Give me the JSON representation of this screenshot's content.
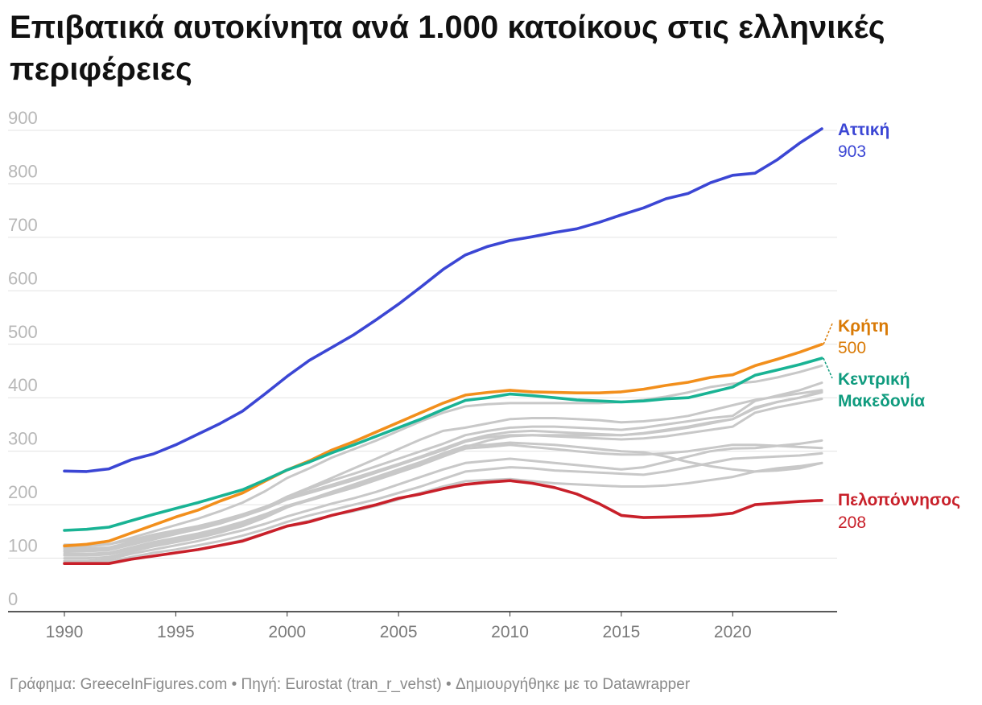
{
  "title": "Επιβατικά αυτοκίνητα ανά 1.000 κατοίκους στις ελληνικές περιφέρειες",
  "footer": "Γράφημα: GreeceInFigures.com • Πηγή: Eurostat (tran_r_vehst) • Δημιουργήθηκε με το Datawrapper",
  "chart_data": {
    "type": "line",
    "title": "Επιβατικά αυτοκίνητα ανά 1.000 κατοίκους στις ελληνικές περιφέρειες",
    "xlabel": "",
    "ylabel": "",
    "xlim": [
      1990,
      2024
    ],
    "ylim": [
      0,
      900
    ],
    "y_ticks": [
      "0",
      "100",
      "200",
      "300",
      "400",
      "500",
      "600",
      "700",
      "800",
      "900"
    ],
    "x_ticks": [
      "1990",
      "1995",
      "2000",
      "2005",
      "2010",
      "2015",
      "2020"
    ],
    "grid": true,
    "x": [
      1990,
      1991,
      1992,
      1993,
      1994,
      1995,
      1996,
      1997,
      1998,
      1999,
      2000,
      2001,
      2002,
      2003,
      2004,
      2005,
      2006,
      2007,
      2008,
      2009,
      2010,
      2011,
      2012,
      2013,
      2014,
      2015,
      2016,
      2017,
      2018,
      2019,
      2020,
      2021,
      2022,
      2023,
      2024
    ],
    "colors": {
      "highlight_attiki": "#3b46d4",
      "highlight_kriti": "#f28f1c",
      "highlight_kentriki": "#19b394",
      "highlight_pelop": "#c8202a",
      "background": "#c8c8c8",
      "label_kriti": "#d97a06",
      "label_kentriki": "#0f9b7e"
    },
    "series": [
      {
        "name": "",
        "role": "background",
        "values": [
          125,
          125,
          126,
          134,
          144,
          152,
          160,
          170,
          182,
          196,
          212,
          225,
          237,
          250,
          263,
          276,
          290,
          305,
          320,
          330,
          336,
          338,
          336,
          334,
          332,
          330,
          333,
          338,
          344,
          352,
          360,
          380,
          392,
          400,
          410
        ]
      },
      {
        "name": "",
        "role": "background",
        "values": [
          118,
          118,
          120,
          130,
          140,
          148,
          156,
          166,
          178,
          192,
          210,
          222,
          234,
          246,
          260,
          274,
          288,
          302,
          318,
          326,
          330,
          330,
          328,
          326,
          324,
          322,
          324,
          328,
          334,
          340,
          346,
          372,
          382,
          390,
          398
        ]
      },
      {
        "name": "",
        "role": "background",
        "values": [
          108,
          108,
          110,
          120,
          130,
          138,
          146,
          156,
          168,
          182,
          198,
          210,
          222,
          236,
          250,
          264,
          278,
          292,
          308,
          320,
          328,
          330,
          330,
          330,
          330,
          330,
          334,
          340,
          346,
          354,
          360,
          382,
          392,
          400,
          412
        ]
      },
      {
        "name": "",
        "role": "background",
        "values": [
          115,
          116,
          118,
          128,
          138,
          146,
          154,
          165,
          178,
          194,
          215,
          230,
          245,
          258,
          272,
          286,
          300,
          314,
          330,
          338,
          344,
          346,
          346,
          344,
          342,
          340,
          344,
          350,
          356,
          362,
          366,
          394,
          404,
          414,
          428
        ]
      },
      {
        "name": "",
        "role": "background",
        "values": [
          120,
          122,
          126,
          138,
          150,
          162,
          174,
          188,
          204,
          225,
          250,
          268,
          288,
          304,
          320,
          338,
          356,
          372,
          384,
          388,
          390,
          390,
          390,
          390,
          390,
          392,
          396,
          402,
          410,
          420,
          426,
          430,
          438,
          448,
          460
        ]
      },
      {
        "name": "",
        "role": "background",
        "values": [
          112,
          113,
          115,
          125,
          135,
          145,
          155,
          166,
          178,
          194,
          215,
          232,
          250,
          268,
          286,
          304,
          322,
          338,
          344,
          352,
          360,
          362,
          362,
          360,
          358,
          354,
          356,
          360,
          366,
          376,
          386,
          396,
          402,
          408,
          414
        ]
      },
      {
        "name": "",
        "role": "background",
        "values": [
          100,
          100,
          102,
          112,
          122,
          130,
          138,
          148,
          160,
          176,
          195,
          210,
          224,
          238,
          252,
          266,
          280,
          296,
          310,
          312,
          316,
          314,
          312,
          308,
          304,
          300,
          298,
          290,
          280,
          272,
          266,
          262,
          264,
          268,
          278
        ]
      },
      {
        "name": "",
        "role": "background",
        "values": [
          105,
          105,
          107,
          116,
          126,
          134,
          142,
          152,
          164,
          180,
          196,
          208,
          220,
          232,
          246,
          260,
          274,
          290,
          305,
          308,
          312,
          308,
          304,
          300,
          296,
          294,
          294,
          296,
          300,
          306,
          312,
          312,
          310,
          308,
          306
        ]
      },
      {
        "name": "",
        "role": "background",
        "values": [
          95,
          95,
          98,
          108,
          116,
          124,
          132,
          142,
          152,
          164,
          178,
          190,
          202,
          212,
          224,
          238,
          252,
          266,
          278,
          282,
          286,
          282,
          278,
          274,
          270,
          266,
          270,
          280,
          290,
          300,
          305,
          306,
          310,
          314,
          320
        ]
      },
      {
        "name": "",
        "role": "background",
        "values": [
          92,
          92,
          94,
          102,
          110,
          116,
          124,
          132,
          142,
          154,
          168,
          180,
          190,
          200,
          210,
          222,
          234,
          248,
          262,
          266,
          270,
          268,
          264,
          262,
          260,
          258,
          256,
          262,
          270,
          278,
          286,
          288,
          290,
          292,
          296
        ]
      },
      {
        "name": "",
        "role": "background",
        "values": [
          90,
          90,
          92,
          98,
          104,
          110,
          116,
          124,
          134,
          146,
          160,
          170,
          180,
          188,
          198,
          210,
          222,
          234,
          244,
          246,
          248,
          244,
          240,
          238,
          236,
          234,
          234,
          236,
          240,
          246,
          252,
          262,
          268,
          272,
          278
        ]
      },
      {
        "name": "Αττική",
        "role": "highlight",
        "color_key": "highlight_attiki",
        "values": [
          263,
          262,
          267,
          284,
          295,
          312,
          332,
          352,
          375,
          407,
          440,
          470,
          494,
          518,
          546,
          575,
          607,
          640,
          667,
          683,
          694,
          701,
          709,
          716,
          728,
          742,
          755,
          772,
          782,
          802,
          816,
          820,
          845,
          876,
          903
        ]
      },
      {
        "name": "Κρήτη",
        "role": "highlight",
        "color_key": "highlight_kriti",
        "values": [
          123,
          126,
          132,
          147,
          162,
          177,
          190,
          207,
          222,
          244,
          265,
          282,
          302,
          318,
          336,
          354,
          372,
          390,
          405,
          410,
          414,
          411,
          410,
          409,
          409,
          411,
          416,
          423,
          429,
          438,
          443,
          460,
          472,
          485,
          500
        ]
      },
      {
        "name": "Κεντρική Μακεδονία",
        "role": "highlight",
        "color_key": "highlight_kentriki",
        "values": [
          152,
          154,
          158,
          170,
          182,
          193,
          204,
          216,
          228,
          246,
          265,
          280,
          297,
          312,
          328,
          344,
          360,
          378,
          395,
          400,
          407,
          404,
          400,
          396,
          394,
          392,
          394,
          398,
          400,
          410,
          420,
          442,
          452,
          462,
          474
        ]
      },
      {
        "name": "Πελοπόννησος",
        "role": "highlight",
        "color_key": "highlight_pelop",
        "values": [
          90,
          90,
          90,
          98,
          104,
          110,
          116,
          124,
          132,
          146,
          160,
          168,
          180,
          190,
          200,
          212,
          220,
          230,
          238,
          242,
          245,
          240,
          232,
          220,
          202,
          180,
          176,
          177,
          178,
          180,
          184,
          200,
          203,
          206,
          208
        ]
      }
    ],
    "labels": [
      {
        "name": "Αττική",
        "value": "903",
        "color_key": "highlight_attiki"
      },
      {
        "name": "Κρήτη",
        "value": "500",
        "color_key": "label_kriti"
      },
      {
        "name_lines": [
          "Κεντρική",
          "Μακεδονία"
        ],
        "color_key": "label_kentriki"
      },
      {
        "name": "Πελοπόννησος",
        "value": "208",
        "color_key": "highlight_pelop"
      }
    ]
  }
}
